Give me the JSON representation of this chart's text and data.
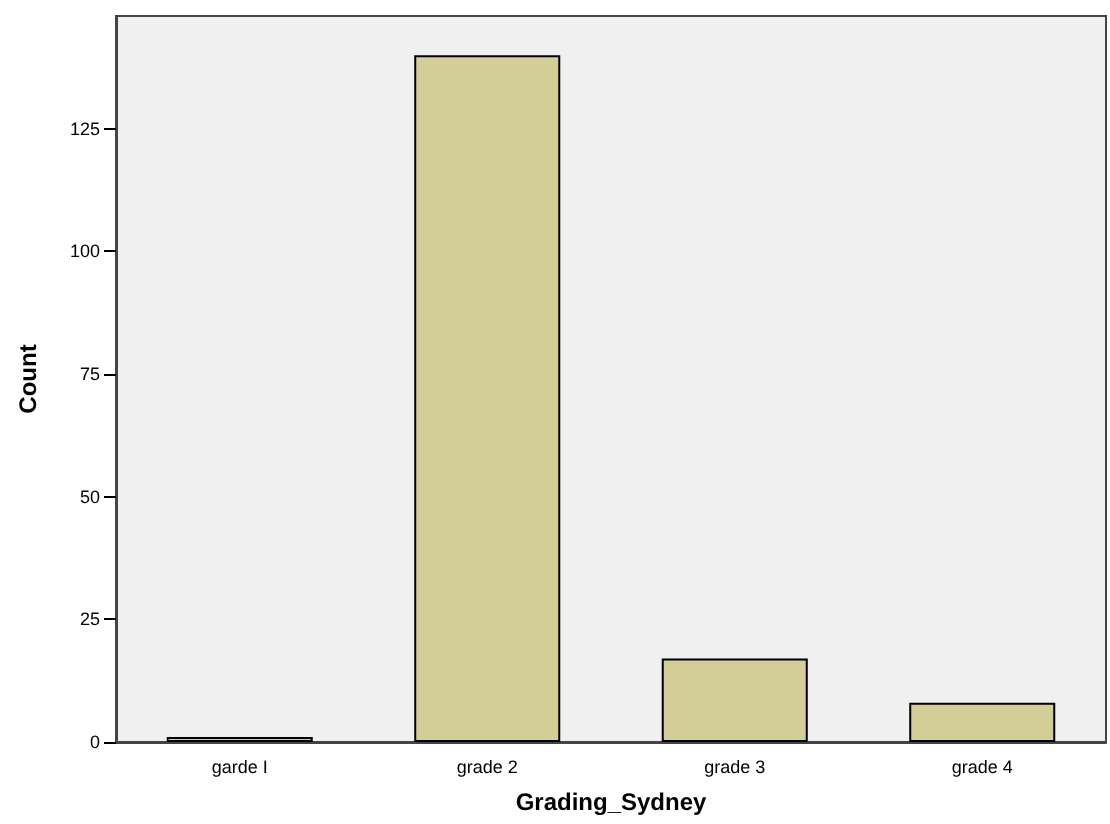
{
  "chart_data": {
    "type": "bar",
    "xlabel": "Grading_Sydney",
    "ylabel": "Count",
    "categories": [
      "garde I",
      "grade 2",
      "grade 3",
      "grade 4"
    ],
    "values": [
      1,
      140,
      17,
      8
    ],
    "color": "#d3ce97",
    "ylim": [
      0,
      148
    ],
    "yticks": [
      0,
      25,
      50,
      75,
      100,
      125
    ],
    "grid": false
  }
}
